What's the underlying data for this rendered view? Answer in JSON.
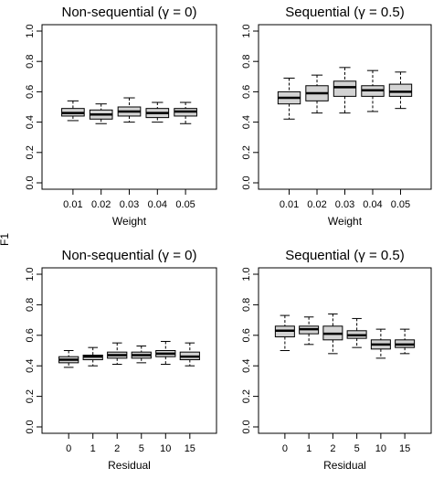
{
  "shared_ylabel": "F1",
  "chart_data": [
    {
      "type": "boxplot",
      "title": "Non-sequential (γ = 0)",
      "xlabel": "Weight",
      "ylabel": "F1",
      "ylim": [
        0,
        1
      ],
      "yticks": [
        "0.0",
        "0.2",
        "0.4",
        "0.6",
        "0.8",
        "1.0"
      ],
      "categories": [
        "0.01",
        "0.02",
        "0.03",
        "0.04",
        "0.05"
      ],
      "fill": "#d3d3d3",
      "boxes": [
        {
          "min": 0.41,
          "q1": 0.44,
          "median": 0.46,
          "q3": 0.49,
          "max": 0.54
        },
        {
          "min": 0.39,
          "q1": 0.42,
          "median": 0.45,
          "q3": 0.48,
          "max": 0.52
        },
        {
          "min": 0.4,
          "q1": 0.44,
          "median": 0.47,
          "q3": 0.5,
          "max": 0.56
        },
        {
          "min": 0.4,
          "q1": 0.43,
          "median": 0.46,
          "q3": 0.49,
          "max": 0.53
        },
        {
          "min": 0.39,
          "q1": 0.44,
          "median": 0.47,
          "q3": 0.49,
          "max": 0.53
        }
      ]
    },
    {
      "type": "boxplot",
      "title": "Sequential (γ = 0.5)",
      "xlabel": "Weight",
      "ylabel": "",
      "ylim": [
        0,
        1
      ],
      "yticks": [
        "0.0",
        "0.2",
        "0.4",
        "0.6",
        "0.8",
        "1.0"
      ],
      "categories": [
        "0.01",
        "0.02",
        "0.03",
        "0.04",
        "0.05"
      ],
      "fill": "#d3d3d3",
      "boxes": [
        {
          "min": 0.42,
          "q1": 0.52,
          "median": 0.56,
          "q3": 0.6,
          "max": 0.69
        },
        {
          "min": 0.46,
          "q1": 0.54,
          "median": 0.59,
          "q3": 0.64,
          "max": 0.71
        },
        {
          "min": 0.46,
          "q1": 0.57,
          "median": 0.63,
          "q3": 0.67,
          "max": 0.76
        },
        {
          "min": 0.47,
          "q1": 0.57,
          "median": 0.61,
          "q3": 0.64,
          "max": 0.74
        },
        {
          "min": 0.49,
          "q1": 0.57,
          "median": 0.6,
          "q3": 0.65,
          "max": 0.73
        }
      ]
    },
    {
      "type": "boxplot",
      "title": "Non-sequential (γ = 0)",
      "xlabel": "Residual",
      "ylabel": "F1",
      "ylim": [
        0,
        1
      ],
      "yticks": [
        "0.0",
        "0.2",
        "0.4",
        "0.6",
        "0.8",
        "1.0"
      ],
      "categories": [
        "0",
        "1",
        "2",
        "5",
        "10",
        "15"
      ],
      "fill": "#d3d3d3",
      "boxes": [
        {
          "min": 0.39,
          "q1": 0.42,
          "median": 0.44,
          "q3": 0.46,
          "max": 0.5
        },
        {
          "min": 0.4,
          "q1": 0.44,
          "median": 0.46,
          "q3": 0.47,
          "max": 0.52
        },
        {
          "min": 0.41,
          "q1": 0.45,
          "median": 0.47,
          "q3": 0.49,
          "max": 0.55
        },
        {
          "min": 0.42,
          "q1": 0.45,
          "median": 0.47,
          "q3": 0.49,
          "max": 0.53
        },
        {
          "min": 0.41,
          "q1": 0.46,
          "median": 0.48,
          "q3": 0.5,
          "max": 0.56
        },
        {
          "min": 0.4,
          "q1": 0.44,
          "median": 0.46,
          "q3": 0.49,
          "max": 0.55
        }
      ]
    },
    {
      "type": "boxplot",
      "title": "Sequential (γ = 0.5)",
      "xlabel": "Residual",
      "ylabel": "",
      "ylim": [
        0,
        1
      ],
      "yticks": [
        "0.0",
        "0.2",
        "0.4",
        "0.6",
        "0.8",
        "1.0"
      ],
      "categories": [
        "0",
        "1",
        "2",
        "5",
        "10",
        "15"
      ],
      "fill": "#d3d3d3",
      "boxes": [
        {
          "min": 0.5,
          "q1": 0.59,
          "median": 0.63,
          "q3": 0.66,
          "max": 0.73
        },
        {
          "min": 0.54,
          "q1": 0.61,
          "median": 0.64,
          "q3": 0.66,
          "max": 0.72
        },
        {
          "min": 0.48,
          "q1": 0.57,
          "median": 0.61,
          "q3": 0.66,
          "max": 0.74
        },
        {
          "min": 0.52,
          "q1": 0.58,
          "median": 0.6,
          "q3": 0.63,
          "max": 0.71
        },
        {
          "min": 0.45,
          "q1": 0.51,
          "median": 0.54,
          "q3": 0.57,
          "max": 0.64
        },
        {
          "min": 0.48,
          "q1": 0.52,
          "median": 0.54,
          "q3": 0.57,
          "max": 0.64
        }
      ]
    }
  ]
}
